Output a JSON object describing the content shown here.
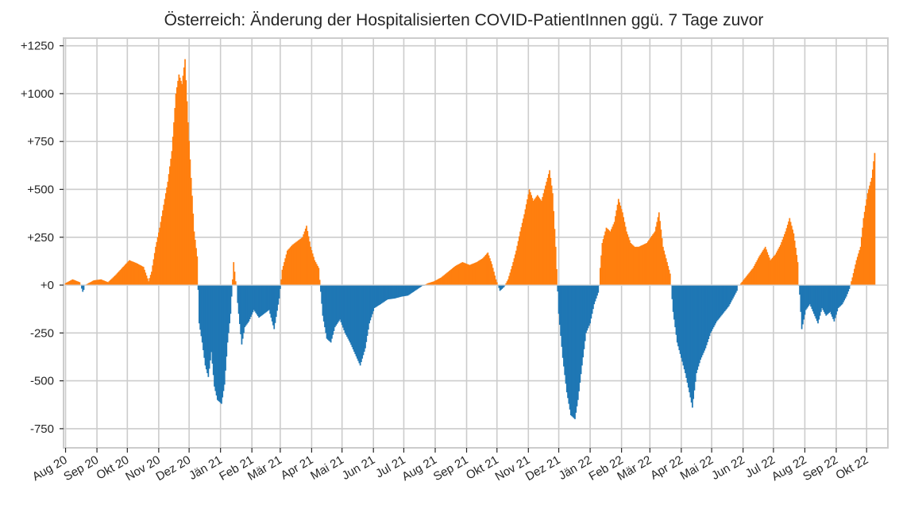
{
  "chart_data": {
    "type": "bar",
    "title": "Österreich: Änderung der Hospitalisierten COVID-PatientInnen ggü. 7 Tage zuvor",
    "xlabel": "",
    "ylabel": "",
    "grid": true,
    "xlim": [
      "2020-07-30",
      "2022-10-22"
    ],
    "ylim": [
      -850,
      1290
    ],
    "y_ticks": [
      {
        "value": 1250,
        "label": "+1250"
      },
      {
        "value": 1000,
        "label": "+1000"
      },
      {
        "value": 750,
        "label": "+750"
      },
      {
        "value": 500,
        "label": "+500"
      },
      {
        "value": 250,
        "label": "+250"
      },
      {
        "value": 0,
        "label": "+0"
      },
      {
        "value": -250,
        "label": "-250"
      },
      {
        "value": -500,
        "label": "-500"
      },
      {
        "value": -750,
        "label": "-750"
      }
    ],
    "x_ticks": [
      {
        "date": "2020-08-01",
        "label": "Aug 20"
      },
      {
        "date": "2020-09-01",
        "label": "Sep 20"
      },
      {
        "date": "2020-10-01",
        "label": "Okt 20"
      },
      {
        "date": "2020-11-01",
        "label": "Nov 20"
      },
      {
        "date": "2020-12-01",
        "label": "Dez 20"
      },
      {
        "date": "2021-01-01",
        "label": "Jän 21"
      },
      {
        "date": "2021-02-01",
        "label": "Feb 21"
      },
      {
        "date": "2021-03-01",
        "label": "Mär 21"
      },
      {
        "date": "2021-04-01",
        "label": "Apr 21"
      },
      {
        "date": "2021-05-01",
        "label": "Mai 21"
      },
      {
        "date": "2021-06-01",
        "label": "Jun 21"
      },
      {
        "date": "2021-07-01",
        "label": "Jul 21"
      },
      {
        "date": "2021-08-01",
        "label": "Aug 21"
      },
      {
        "date": "2021-09-01",
        "label": "Sep 21"
      },
      {
        "date": "2021-10-01",
        "label": "Okt 21"
      },
      {
        "date": "2021-11-01",
        "label": "Nov 21"
      },
      {
        "date": "2021-12-01",
        "label": "Dez 21"
      },
      {
        "date": "2022-01-01",
        "label": "Jän 22"
      },
      {
        "date": "2022-02-01",
        "label": "Feb 22"
      },
      {
        "date": "2022-03-01",
        "label": "Mär 22"
      },
      {
        "date": "2022-04-01",
        "label": "Apr 22"
      },
      {
        "date": "2022-05-01",
        "label": "Mai 22"
      },
      {
        "date": "2022-06-01",
        "label": "Jun 22"
      },
      {
        "date": "2022-07-01",
        "label": "Jul 22"
      },
      {
        "date": "2022-08-01",
        "label": "Aug 22"
      },
      {
        "date": "2022-09-01",
        "label": "Sep 22"
      },
      {
        "date": "2022-10-01",
        "label": "Okt 22"
      }
    ],
    "colors": {
      "positive": "#ff7f0e",
      "negative": "#1f77b4",
      "grid": "#cccccc",
      "axes_edge": "#cccccc",
      "text": "#262626"
    },
    "series": [
      {
        "values_by_date": [
          {
            "date": "2020-08-01",
            "value": 10
          },
          {
            "date": "2020-08-08",
            "value": 30
          },
          {
            "date": "2020-08-15",
            "value": 15
          },
          {
            "date": "2020-08-18",
            "value": -35
          },
          {
            "date": "2020-08-22",
            "value": 5
          },
          {
            "date": "2020-08-29",
            "value": 25
          },
          {
            "date": "2020-09-05",
            "value": 30
          },
          {
            "date": "2020-09-12",
            "value": 15
          },
          {
            "date": "2020-09-19",
            "value": 50
          },
          {
            "date": "2020-09-26",
            "value": 90
          },
          {
            "date": "2020-10-03",
            "value": 130
          },
          {
            "date": "2020-10-10",
            "value": 115
          },
          {
            "date": "2020-10-17",
            "value": 95
          },
          {
            "date": "2020-10-22",
            "value": 20
          },
          {
            "date": "2020-10-25",
            "value": 70
          },
          {
            "date": "2020-10-29",
            "value": 200
          },
          {
            "date": "2020-11-02",
            "value": 300
          },
          {
            "date": "2020-11-06",
            "value": 420
          },
          {
            "date": "2020-11-10",
            "value": 540
          },
          {
            "date": "2020-11-14",
            "value": 700
          },
          {
            "date": "2020-11-18",
            "value": 1000
          },
          {
            "date": "2020-11-21",
            "value": 1100
          },
          {
            "date": "2020-11-24",
            "value": 1050
          },
          {
            "date": "2020-11-27",
            "value": 1180
          },
          {
            "date": "2020-11-30",
            "value": 850
          },
          {
            "date": "2020-12-03",
            "value": 560
          },
          {
            "date": "2020-12-06",
            "value": 280
          },
          {
            "date": "2020-12-09",
            "value": 150
          },
          {
            "date": "2020-12-11",
            "value": -200
          },
          {
            "date": "2020-12-14",
            "value": -300
          },
          {
            "date": "2020-12-17",
            "value": -420
          },
          {
            "date": "2020-12-20",
            "value": -480
          },
          {
            "date": "2020-12-23",
            "value": -350
          },
          {
            "date": "2020-12-26",
            "value": -530
          },
          {
            "date": "2020-12-29",
            "value": -600
          },
          {
            "date": "2021-01-02",
            "value": -620
          },
          {
            "date": "2021-01-05",
            "value": -520
          },
          {
            "date": "2021-01-08",
            "value": -300
          },
          {
            "date": "2021-01-11",
            "value": -150
          },
          {
            "date": "2021-01-14",
            "value": 120
          },
          {
            "date": "2021-01-16",
            "value": 20
          },
          {
            "date": "2021-01-19",
            "value": -150
          },
          {
            "date": "2021-01-22",
            "value": -310
          },
          {
            "date": "2021-01-25",
            "value": -220
          },
          {
            "date": "2021-01-29",
            "value": -190
          },
          {
            "date": "2021-02-03",
            "value": -130
          },
          {
            "date": "2021-02-08",
            "value": -170
          },
          {
            "date": "2021-02-13",
            "value": -150
          },
          {
            "date": "2021-02-18",
            "value": -130
          },
          {
            "date": "2021-02-23",
            "value": -230
          },
          {
            "date": "2021-02-28",
            "value": -70
          },
          {
            "date": "2021-03-03",
            "value": 80
          },
          {
            "date": "2021-03-08",
            "value": 180
          },
          {
            "date": "2021-03-13",
            "value": 210
          },
          {
            "date": "2021-03-18",
            "value": 230
          },
          {
            "date": "2021-03-23",
            "value": 250
          },
          {
            "date": "2021-03-27",
            "value": 310
          },
          {
            "date": "2021-03-31",
            "value": 200
          },
          {
            "date": "2021-04-04",
            "value": 130
          },
          {
            "date": "2021-04-08",
            "value": 90
          },
          {
            "date": "2021-04-12",
            "value": -160
          },
          {
            "date": "2021-04-16",
            "value": -280
          },
          {
            "date": "2021-04-20",
            "value": -300
          },
          {
            "date": "2021-04-24",
            "value": -220
          },
          {
            "date": "2021-04-29",
            "value": -180
          },
          {
            "date": "2021-05-04",
            "value": -250
          },
          {
            "date": "2021-05-09",
            "value": -300
          },
          {
            "date": "2021-05-14",
            "value": -360
          },
          {
            "date": "2021-05-19",
            "value": -420
          },
          {
            "date": "2021-05-24",
            "value": -330
          },
          {
            "date": "2021-05-28",
            "value": -200
          },
          {
            "date": "2021-06-02",
            "value": -120
          },
          {
            "date": "2021-06-08",
            "value": -100
          },
          {
            "date": "2021-06-15",
            "value": -75
          },
          {
            "date": "2021-06-22",
            "value": -70
          },
          {
            "date": "2021-06-29",
            "value": -60
          },
          {
            "date": "2021-07-05",
            "value": -55
          },
          {
            "date": "2021-07-12",
            "value": -30
          },
          {
            "date": "2021-07-19",
            "value": -5
          },
          {
            "date": "2021-07-25",
            "value": 10
          },
          {
            "date": "2021-07-31",
            "value": 20
          },
          {
            "date": "2021-08-07",
            "value": 40
          },
          {
            "date": "2021-08-14",
            "value": 70
          },
          {
            "date": "2021-08-21",
            "value": 100
          },
          {
            "date": "2021-08-28",
            "value": 120
          },
          {
            "date": "2021-09-04",
            "value": 105
          },
          {
            "date": "2021-09-11",
            "value": 120
          },
          {
            "date": "2021-09-17",
            "value": 140
          },
          {
            "date": "2021-09-22",
            "value": 170
          },
          {
            "date": "2021-09-26",
            "value": 110
          },
          {
            "date": "2021-09-30",
            "value": 30
          },
          {
            "date": "2021-10-04",
            "value": -30
          },
          {
            "date": "2021-10-08",
            "value": -10
          },
          {
            "date": "2021-10-12",
            "value": 30
          },
          {
            "date": "2021-10-16",
            "value": 100
          },
          {
            "date": "2021-10-20",
            "value": 180
          },
          {
            "date": "2021-10-24",
            "value": 280
          },
          {
            "date": "2021-10-28",
            "value": 370
          },
          {
            "date": "2021-11-02",
            "value": 500
          },
          {
            "date": "2021-11-06",
            "value": 440
          },
          {
            "date": "2021-11-10",
            "value": 470
          },
          {
            "date": "2021-11-14",
            "value": 440
          },
          {
            "date": "2021-11-18",
            "value": 520
          },
          {
            "date": "2021-11-22",
            "value": 600
          },
          {
            "date": "2021-11-25",
            "value": 480
          },
          {
            "date": "2021-11-28",
            "value": 200
          },
          {
            "date": "2021-12-01",
            "value": -150
          },
          {
            "date": "2021-12-05",
            "value": -380
          },
          {
            "date": "2021-12-09",
            "value": -560
          },
          {
            "date": "2021-12-13",
            "value": -680
          },
          {
            "date": "2021-12-17",
            "value": -700
          },
          {
            "date": "2021-12-20",
            "value": -600
          },
          {
            "date": "2021-12-24",
            "value": -420
          },
          {
            "date": "2021-12-28",
            "value": -250
          },
          {
            "date": "2022-01-01",
            "value": -200
          },
          {
            "date": "2022-01-05",
            "value": -100
          },
          {
            "date": "2022-01-09",
            "value": -40
          },
          {
            "date": "2022-01-13",
            "value": 220
          },
          {
            "date": "2022-01-17",
            "value": 300
          },
          {
            "date": "2022-01-21",
            "value": 280
          },
          {
            "date": "2022-01-25",
            "value": 330
          },
          {
            "date": "2022-01-29",
            "value": 450
          },
          {
            "date": "2022-02-02",
            "value": 380
          },
          {
            "date": "2022-02-06",
            "value": 280
          },
          {
            "date": "2022-02-10",
            "value": 220
          },
          {
            "date": "2022-02-14",
            "value": 200
          },
          {
            "date": "2022-02-18",
            "value": 200
          },
          {
            "date": "2022-02-22",
            "value": 210
          },
          {
            "date": "2022-02-26",
            "value": 220
          },
          {
            "date": "2022-03-02",
            "value": 250
          },
          {
            "date": "2022-03-06",
            "value": 280
          },
          {
            "date": "2022-03-10",
            "value": 380
          },
          {
            "date": "2022-03-14",
            "value": 200
          },
          {
            "date": "2022-03-18",
            "value": 120
          },
          {
            "date": "2022-03-21",
            "value": 60
          },
          {
            "date": "2022-03-24",
            "value": -140
          },
          {
            "date": "2022-03-28",
            "value": -300
          },
          {
            "date": "2022-04-01",
            "value": -380
          },
          {
            "date": "2022-04-05",
            "value": -460
          },
          {
            "date": "2022-04-09",
            "value": -560
          },
          {
            "date": "2022-04-12",
            "value": -640
          },
          {
            "date": "2022-04-16",
            "value": -460
          },
          {
            "date": "2022-04-20",
            "value": -390
          },
          {
            "date": "2022-04-25",
            "value": -330
          },
          {
            "date": "2022-04-30",
            "value": -250
          },
          {
            "date": "2022-05-06",
            "value": -190
          },
          {
            "date": "2022-05-12",
            "value": -150
          },
          {
            "date": "2022-05-18",
            "value": -110
          },
          {
            "date": "2022-05-24",
            "value": -50
          },
          {
            "date": "2022-05-30",
            "value": 10
          },
          {
            "date": "2022-06-05",
            "value": 50
          },
          {
            "date": "2022-06-11",
            "value": 90
          },
          {
            "date": "2022-06-17",
            "value": 150
          },
          {
            "date": "2022-06-23",
            "value": 200
          },
          {
            "date": "2022-06-28",
            "value": 130
          },
          {
            "date": "2022-07-03",
            "value": 160
          },
          {
            "date": "2022-07-08",
            "value": 210
          },
          {
            "date": "2022-07-13",
            "value": 280
          },
          {
            "date": "2022-07-17",
            "value": 350
          },
          {
            "date": "2022-07-21",
            "value": 270
          },
          {
            "date": "2022-07-25",
            "value": 120
          },
          {
            "date": "2022-07-27",
            "value": -50
          },
          {
            "date": "2022-07-29",
            "value": -230
          },
          {
            "date": "2022-08-02",
            "value": -130
          },
          {
            "date": "2022-08-06",
            "value": -100
          },
          {
            "date": "2022-08-10",
            "value": -150
          },
          {
            "date": "2022-08-14",
            "value": -200
          },
          {
            "date": "2022-08-18",
            "value": -120
          },
          {
            "date": "2022-08-22",
            "value": -160
          },
          {
            "date": "2022-08-26",
            "value": -140
          },
          {
            "date": "2022-08-30",
            "value": -190
          },
          {
            "date": "2022-09-03",
            "value": -120
          },
          {
            "date": "2022-09-07",
            "value": -100
          },
          {
            "date": "2022-09-11",
            "value": -60
          },
          {
            "date": "2022-09-14",
            "value": -20
          },
          {
            "date": "2022-09-17",
            "value": 40
          },
          {
            "date": "2022-09-21",
            "value": 130
          },
          {
            "date": "2022-09-25",
            "value": 200
          },
          {
            "date": "2022-09-28",
            "value": 350
          },
          {
            "date": "2022-10-02",
            "value": 480
          },
          {
            "date": "2022-10-06",
            "value": 560
          },
          {
            "date": "2022-10-09",
            "value": 690
          }
        ]
      }
    ]
  }
}
